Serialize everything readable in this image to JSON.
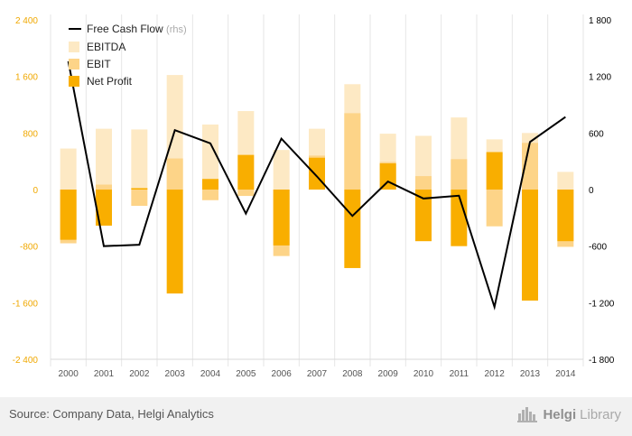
{
  "chart_data": {
    "type": "bar",
    "categories": [
      "2000",
      "2001",
      "2002",
      "2003",
      "2004",
      "2005",
      "2006",
      "2007",
      "2008",
      "2009",
      "2010",
      "2011",
      "2012",
      "2013",
      "2014"
    ],
    "series": [
      {
        "name": "EBITDA",
        "kind": "bar",
        "axis": "left",
        "color": "#fde9c4",
        "values": [
          580,
          860,
          850,
          1620,
          920,
          1110,
          560,
          860,
          1490,
          790,
          760,
          1020,
          710,
          800,
          250
        ]
      },
      {
        "name": "EBIT",
        "kind": "bar",
        "axis": "left",
        "color": "#fdd488",
        "values": [
          -760,
          70,
          -230,
          440,
          -150,
          -90,
          -940,
          480,
          1080,
          390,
          190,
          430,
          -520,
          660,
          -810
        ]
      },
      {
        "name": "Net Profit",
        "kind": "bar",
        "axis": "left",
        "color": "#f9ae00",
        "values": [
          -710,
          -510,
          20,
          -1470,
          150,
          490,
          -790,
          450,
          -1110,
          370,
          -730,
          -800,
          530,
          -1570,
          -730
        ]
      },
      {
        "name": "Free Cash Flow",
        "suffix": "(rhs)",
        "kind": "line",
        "axis": "right",
        "color": "#000000",
        "values": [
          1360,
          -600,
          -585,
          630,
          490,
          -255,
          540,
          140,
          -280,
          85,
          -95,
          -65,
          -1245,
          505,
          770
        ]
      }
    ],
    "left_axis": {
      "min": -2400,
      "max": 2400,
      "ticks": [
        -2400,
        -1600,
        -800,
        0,
        800,
        1600,
        2400
      ],
      "tick_labels": [
        "-2 400",
        "-1 600",
        "-800",
        "0",
        "800",
        "1 600",
        "2 400"
      ],
      "color": "#f0a800"
    },
    "right_axis": {
      "min": -1800,
      "max": 1800,
      "ticks": [
        -1800,
        -1200,
        -600,
        0,
        600,
        1200,
        1800
      ],
      "tick_labels": [
        "-1 800",
        "-1 200",
        "-600",
        "0",
        "600",
        "1 200",
        "1 800"
      ],
      "color": "#000000"
    },
    "grid": "vertical",
    "legend": "top-left"
  },
  "footer": {
    "source": "Source: Company Data, Helgi Analytics",
    "brand_bold": "Helgi",
    "brand_light": "Library"
  }
}
